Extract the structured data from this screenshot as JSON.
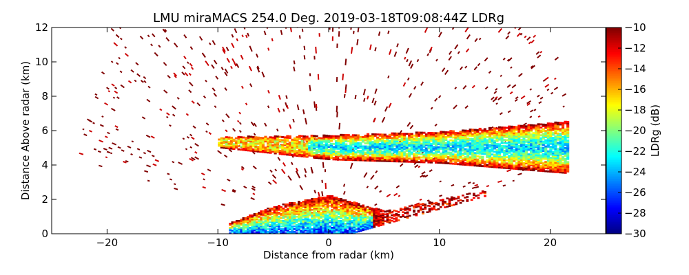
{
  "chart_data": {
    "type": "heatmap",
    "title": "LMU miraMACS 254.0 Deg. 2019-03-18T09:08:44Z  LDRg",
    "xlabel": "Distance from radar (km)",
    "ylabel": "Distance Above radar  (km)",
    "xlim": [
      -25,
      25
    ],
    "ylim": [
      0,
      12
    ],
    "x_ticks": [
      -20,
      -10,
      0,
      10,
      20
    ],
    "x_tick_labels": [
      "−20",
      "−10",
      "0",
      "10",
      "20"
    ],
    "y_ticks": [
      0,
      2,
      4,
      6,
      8,
      10,
      12
    ],
    "y_tick_labels": [
      "0",
      "2",
      "4",
      "6",
      "8",
      "10",
      "12"
    ],
    "colorbar": {
      "label": "LDRg (dB)",
      "range": [
        -30,
        -10
      ],
      "ticks": [
        -30,
        -28,
        -26,
        -24,
        -22,
        -20,
        -18,
        -16,
        -14,
        -12,
        -10
      ],
      "tick_labels": [
        "−30",
        "−28",
        "−26",
        "−24",
        "−22",
        "−20",
        "−18",
        "−16",
        "−14",
        "−12",
        "−10"
      ],
      "colormap": "jet"
    },
    "features": [
      {
        "feature": "cloud-layer",
        "x_range": [
          -10,
          21.5
        ],
        "height_center_at_x": [
          [
            -10,
            5.3
          ],
          [
            0,
            5.0
          ],
          [
            10,
            5.0
          ],
          [
            21.5,
            5.0
          ]
        ],
        "thickness": [
          [
            -10,
            0.3
          ],
          [
            0,
            0.7
          ],
          [
            10,
            0.9
          ],
          [
            21.5,
            1.5
          ]
        ],
        "core_ldr_db": -23,
        "edge_ldr_db": -11
      },
      {
        "feature": "low-level-echo",
        "x_range": [
          -9,
          14
        ],
        "top_height_at_x": [
          [
            -9,
            0.6
          ],
          [
            -5,
            1.6
          ],
          [
            0,
            2.2
          ],
          [
            5,
            1.3
          ],
          [
            14,
            2.5
          ]
        ],
        "core_ldr_db": -26,
        "edge_ldr_db": -11
      },
      {
        "feature": "sparse-clutter",
        "extent_radius_km": 22,
        "ldr_db": -10
      }
    ]
  }
}
